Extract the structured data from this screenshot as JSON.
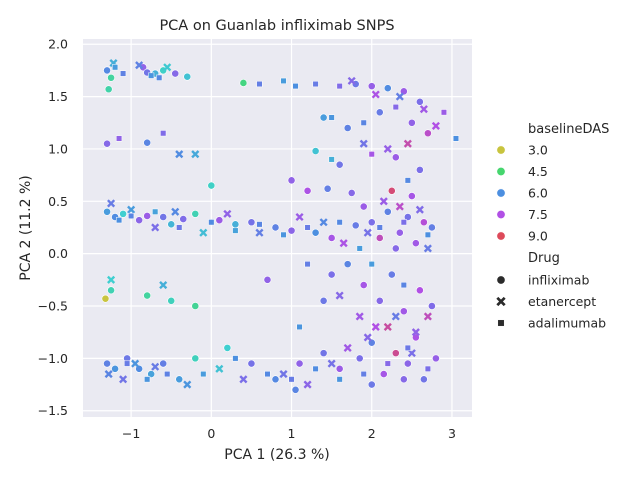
{
  "chart_data": {
    "type": "scatter",
    "title": "PCA on Guanlab infliximab SNPS",
    "xlabel": "PCA 1 (26.3 %)",
    "ylabel": "PCA 2 (11.2 %)",
    "xlim": [
      -1.6,
      3.25
    ],
    "ylim": [
      -1.56,
      2.05
    ],
    "xticks": [
      -1,
      0,
      1,
      2,
      3
    ],
    "xtick_labels": [
      "−1",
      "0",
      "1",
      "2",
      "3"
    ],
    "yticks": [
      -1.5,
      -1.0,
      -0.5,
      0.0,
      0.5,
      1.0,
      1.5,
      2.0
    ],
    "ytick_labels": [
      "−1.5",
      "−1.0",
      "−0.5",
      "0.0",
      "0.5",
      "1.0",
      "1.5",
      "2.0"
    ],
    "grid": true,
    "background": "#eaeaf2",
    "legend": {
      "placement": "right",
      "hue_title": "baselineDAS",
      "hue_entries": [
        {
          "label": "3.0",
          "color": "#c8c43e"
        },
        {
          "label": "4.5",
          "color": "#46d66e"
        },
        {
          "label": "6.0",
          "color": "#4c8fe0"
        },
        {
          "label": "7.5",
          "color": "#b150e5"
        },
        {
          "label": "9.0",
          "color": "#dd4a5a"
        }
      ],
      "style_title": "Drug",
      "style_entries": [
        {
          "label": "infliximab",
          "marker": "circle"
        },
        {
          "label": "etanercept",
          "marker": "x"
        },
        {
          "label": "adalimumab",
          "marker": "square"
        }
      ]
    },
    "color_scale": {
      "min": 3.0,
      "max": 9.0,
      "stops": [
        "#c8c43e",
        "#46d66e",
        "#3fcfd0",
        "#4c8fe0",
        "#7b6fe8",
        "#b150e5",
        "#dd4a5a"
      ]
    },
    "series": [
      {
        "name": "infliximab",
        "marker": "circle",
        "points": [
          [
            -1.3,
            1.75,
            6.2
          ],
          [
            -1.25,
            1.68,
            4.5
          ],
          [
            -1.28,
            1.57,
            4.6
          ],
          [
            -0.85,
            1.78,
            7.4
          ],
          [
            -0.8,
            1.73,
            6.8
          ],
          [
            -0.7,
            1.72,
            5.5
          ],
          [
            -0.6,
            1.75,
            4.9
          ],
          [
            -0.45,
            1.72,
            7.2
          ],
          [
            -0.3,
            1.69,
            5.2
          ],
          [
            0.4,
            1.63,
            4.2
          ],
          [
            1.8,
            1.62,
            6.7
          ],
          [
            2.0,
            1.6,
            7.5
          ],
          [
            2.2,
            1.58,
            6.1
          ],
          [
            2.4,
            1.55,
            7.6
          ],
          [
            2.6,
            1.45,
            7.0
          ],
          [
            2.1,
            1.35,
            6.6
          ],
          [
            1.4,
            1.3,
            5.8
          ],
          [
            1.7,
            1.2,
            6.4
          ],
          [
            2.5,
            1.25,
            7.4
          ],
          [
            2.7,
            1.15,
            8.2
          ],
          [
            1.3,
            0.98,
            5.2
          ],
          [
            1.6,
            0.85,
            6.8
          ],
          [
            2.3,
            0.92,
            7.6
          ],
          [
            2.6,
            0.8,
            7.0
          ],
          [
            -1.3,
            1.05,
            7.2
          ],
          [
            -0.8,
            1.06,
            6.3
          ],
          [
            0.0,
            0.65,
            4.9
          ],
          [
            1.0,
            0.7,
            7.4
          ],
          [
            1.2,
            0.6,
            7.9
          ],
          [
            1.45,
            0.62,
            6.5
          ],
          [
            1.75,
            0.58,
            7.2
          ],
          [
            2.25,
            0.6,
            8.8
          ],
          [
            2.5,
            0.55,
            7.8
          ],
          [
            -1.3,
            0.4,
            5.8
          ],
          [
            -1.2,
            0.35,
            6.1
          ],
          [
            -1.1,
            0.38,
            5.0
          ],
          [
            -0.9,
            0.32,
            7.3
          ],
          [
            -0.8,
            0.36,
            7.6
          ],
          [
            -0.6,
            0.35,
            6.8
          ],
          [
            -0.5,
            0.28,
            5.4
          ],
          [
            -0.35,
            0.33,
            7.1
          ],
          [
            -0.2,
            0.38,
            4.7
          ],
          [
            0.1,
            0.32,
            7.6
          ],
          [
            0.3,
            0.28,
            5.5
          ],
          [
            0.5,
            0.3,
            6.9
          ],
          [
            0.8,
            0.25,
            6.4
          ],
          [
            1.0,
            0.22,
            7.3
          ],
          [
            1.3,
            0.2,
            6.0
          ],
          [
            1.5,
            0.15,
            7.8
          ],
          [
            1.8,
            0.27,
            6.6
          ],
          [
            1.9,
            0.45,
            7.6
          ],
          [
            2.0,
            0.3,
            7.0
          ],
          [
            2.1,
            0.15,
            8.3
          ],
          [
            2.2,
            0.4,
            6.4
          ],
          [
            2.35,
            0.2,
            7.5
          ],
          [
            2.45,
            0.35,
            6.9
          ],
          [
            2.55,
            0.1,
            7.7
          ],
          [
            2.65,
            0.3,
            8.1
          ],
          [
            2.75,
            0.25,
            6.5
          ],
          [
            2.3,
            0.05,
            7.2
          ],
          [
            -1.32,
            -0.43,
            3.0
          ],
          [
            -1.25,
            -0.35,
            4.7
          ],
          [
            -0.8,
            -0.4,
            4.5
          ],
          [
            -0.5,
            -0.45,
            4.8
          ],
          [
            -0.2,
            -0.5,
            4.4
          ],
          [
            0.7,
            -0.25,
            7.4
          ],
          [
            1.5,
            -0.2,
            7.0
          ],
          [
            1.7,
            -0.1,
            6.3
          ],
          [
            1.9,
            -0.3,
            7.8
          ],
          [
            2.1,
            -0.45,
            7.2
          ],
          [
            2.25,
            -0.2,
            6.6
          ],
          [
            2.4,
            -0.55,
            7.7
          ],
          [
            2.6,
            -0.35,
            8.0
          ],
          [
            2.75,
            -0.5,
            7.1
          ],
          [
            1.4,
            -0.45,
            6.7
          ],
          [
            -1.3,
            -1.05,
            6.4
          ],
          [
            -1.2,
            -1.1,
            5.9
          ],
          [
            -1.05,
            -1.0,
            6.7
          ],
          [
            -0.9,
            -1.1,
            6.1
          ],
          [
            -0.75,
            -1.15,
            5.7
          ],
          [
            -0.6,
            -1.05,
            6.5
          ],
          [
            -0.4,
            -1.2,
            5.8
          ],
          [
            -0.2,
            -1.0,
            4.8
          ],
          [
            0.2,
            -0.9,
            5.0
          ],
          [
            0.5,
            -1.05,
            6.9
          ],
          [
            0.8,
            -1.2,
            6.2
          ],
          [
            1.1,
            -1.05,
            7.4
          ],
          [
            1.4,
            -0.95,
            6.8
          ],
          [
            1.6,
            -1.1,
            7.6
          ],
          [
            1.85,
            -1.0,
            7.0
          ],
          [
            2.0,
            -0.85,
            6.4
          ],
          [
            2.15,
            -1.15,
            7.8
          ],
          [
            2.3,
            -0.95,
            8.6
          ],
          [
            2.45,
            -1.05,
            7.3
          ],
          [
            2.55,
            -0.8,
            7.9
          ],
          [
            2.65,
            -1.2,
            6.8
          ],
          [
            2.8,
            -1.0,
            7.5
          ],
          [
            1.05,
            -1.3,
            6.3
          ],
          [
            2.4,
            -1.2,
            7.2
          ],
          [
            2.0,
            -1.25,
            6.7
          ]
        ]
      },
      {
        "name": "etanercept",
        "marker": "x",
        "points": [
          [
            -1.22,
            1.82,
            5.5
          ],
          [
            -0.9,
            1.8,
            6.4
          ],
          [
            -0.55,
            1.78,
            5.1
          ],
          [
            1.75,
            1.65,
            7.2
          ],
          [
            2.05,
            1.52,
            7.9
          ],
          [
            2.35,
            1.5,
            6.5
          ],
          [
            2.65,
            1.38,
            7.7
          ],
          [
            2.8,
            1.22,
            8.0
          ],
          [
            1.9,
            1.05,
            6.8
          ],
          [
            2.2,
            1.0,
            7.5
          ],
          [
            2.45,
            1.05,
            8.4
          ],
          [
            -0.4,
            0.95,
            6.1
          ],
          [
            -0.2,
            0.95,
            5.6
          ],
          [
            -1.25,
            0.48,
            6.6
          ],
          [
            -1.0,
            0.42,
            5.8
          ],
          [
            -0.7,
            0.25,
            7.0
          ],
          [
            -0.45,
            0.4,
            6.2
          ],
          [
            -0.1,
            0.2,
            5.3
          ],
          [
            0.2,
            0.38,
            7.4
          ],
          [
            0.6,
            0.2,
            6.5
          ],
          [
            1.1,
            0.35,
            7.6
          ],
          [
            1.4,
            0.3,
            6.2
          ],
          [
            1.65,
            0.1,
            7.9
          ],
          [
            1.95,
            0.2,
            6.9
          ],
          [
            2.15,
            0.5,
            7.6
          ],
          [
            2.35,
            0.45,
            8.2
          ],
          [
            2.6,
            0.42,
            7.1
          ],
          [
            2.7,
            0.05,
            6.6
          ],
          [
            -1.25,
            -0.25,
            5.0
          ],
          [
            -0.6,
            -0.3,
            5.5
          ],
          [
            1.6,
            -0.4,
            7.2
          ],
          [
            1.85,
            -0.6,
            7.7
          ],
          [
            2.05,
            -0.7,
            8.0
          ],
          [
            2.3,
            -0.6,
            6.6
          ],
          [
            2.55,
            -0.75,
            7.4
          ],
          [
            2.7,
            -0.6,
            8.3
          ],
          [
            -1.28,
            -1.15,
            6.3
          ],
          [
            -1.1,
            -1.2,
            6.8
          ],
          [
            -0.95,
            -1.05,
            5.9
          ],
          [
            -0.7,
            -1.08,
            6.6
          ],
          [
            -0.3,
            -1.25,
            5.9
          ],
          [
            0.1,
            -1.1,
            5.2
          ],
          [
            0.4,
            -1.2,
            7.0
          ],
          [
            0.9,
            -1.15,
            6.8
          ],
          [
            1.2,
            -1.25,
            7.3
          ],
          [
            1.5,
            -1.05,
            6.9
          ],
          [
            1.7,
            -0.9,
            7.7
          ],
          [
            1.95,
            -0.8,
            7.2
          ],
          [
            2.2,
            -0.7,
            8.5
          ],
          [
            2.5,
            -0.95,
            7.0
          ]
        ]
      },
      {
        "name": "adalimumab",
        "marker": "square",
        "points": [
          [
            -1.2,
            1.78,
            5.8
          ],
          [
            -1.1,
            1.72,
            6.4
          ],
          [
            -0.75,
            1.7,
            5.9
          ],
          [
            -0.65,
            1.68,
            6.2
          ],
          [
            0.6,
            1.62,
            6.5
          ],
          [
            0.9,
            1.65,
            5.8
          ],
          [
            1.05,
            1.6,
            6.0
          ],
          [
            1.3,
            1.62,
            6.6
          ],
          [
            1.6,
            1.6,
            7.1
          ],
          [
            2.9,
            1.35,
            7.6
          ],
          [
            3.05,
            1.1,
            6.0
          ],
          [
            1.5,
            1.3,
            5.9
          ],
          [
            1.9,
            1.25,
            6.3
          ],
          [
            2.3,
            1.4,
            7.2
          ],
          [
            -1.15,
            1.1,
            7.4
          ],
          [
            -0.6,
            1.15,
            7.1
          ],
          [
            1.5,
            0.9,
            5.5
          ],
          [
            2.0,
            0.95,
            7.8
          ],
          [
            2.45,
            0.7,
            6.2
          ],
          [
            -1.15,
            0.32,
            6.0
          ],
          [
            -1.0,
            0.36,
            6.3
          ],
          [
            -0.7,
            0.4,
            5.7
          ],
          [
            -0.4,
            0.25,
            6.7
          ],
          [
            0.0,
            0.3,
            6.1
          ],
          [
            0.3,
            0.22,
            5.7
          ],
          [
            0.6,
            0.28,
            6.3
          ],
          [
            0.9,
            0.18,
            5.9
          ],
          [
            1.2,
            0.25,
            6.6
          ],
          [
            1.6,
            0.3,
            6.2
          ],
          [
            1.85,
            0.05,
            5.8
          ],
          [
            2.1,
            0.25,
            6.4
          ],
          [
            2.4,
            0.3,
            7.0
          ],
          [
            2.7,
            0.18,
            6.0
          ],
          [
            1.2,
            -0.1,
            6.5
          ],
          [
            2.0,
            -0.1,
            5.8
          ],
          [
            2.4,
            -0.3,
            6.3
          ],
          [
            -1.05,
            -1.05,
            6.6
          ],
          [
            -0.8,
            -1.2,
            5.9
          ],
          [
            -0.55,
            -1.15,
            6.4
          ],
          [
            -0.1,
            -1.15,
            5.8
          ],
          [
            0.3,
            -1.0,
            6.0
          ],
          [
            0.7,
            -1.15,
            6.2
          ],
          [
            1.0,
            -1.2,
            6.6
          ],
          [
            1.3,
            -1.1,
            6.1
          ],
          [
            1.6,
            -1.2,
            5.9
          ],
          [
            1.9,
            -1.15,
            6.5
          ],
          [
            2.2,
            -1.05,
            7.2
          ],
          [
            2.45,
            -0.9,
            6.7
          ],
          [
            2.7,
            -1.1,
            7.0
          ],
          [
            1.1,
            -0.7,
            5.9
          ]
        ]
      }
    ]
  }
}
